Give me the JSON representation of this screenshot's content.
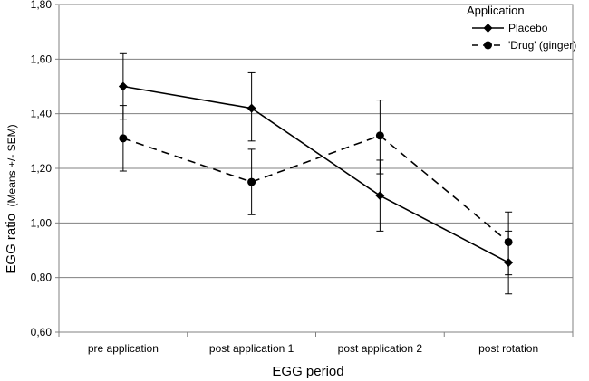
{
  "chart_data": {
    "type": "line",
    "xlabel": "EGG period",
    "ylabel_main": "EGG ratio",
    "ylabel_sub": "(Means +/- SEM)",
    "categories": [
      "pre application",
      "post application 1",
      "post application 2",
      "post rotation"
    ],
    "ylim": [
      0.6,
      1.8
    ],
    "yticks": [
      "0,60",
      "0,80",
      "1,00",
      "1,20",
      "1,40",
      "1,60",
      "1,80"
    ],
    "ytick_values": [
      0.6,
      0.8,
      1.0,
      1.2,
      1.4,
      1.6,
      1.8
    ],
    "grid": true,
    "legend": {
      "title": "Application",
      "placement": "top-right"
    },
    "series": [
      {
        "name": "Placebo",
        "line_style": "solid",
        "marker": "diamond",
        "color": "#000000",
        "values": [
          1.5,
          1.42,
          1.1,
          0.855
        ],
        "err_low": [
          1.38,
          1.3,
          0.97,
          0.74
        ],
        "err_high": [
          1.62,
          1.55,
          1.23,
          0.97
        ]
      },
      {
        "name": "'Drug' (ginger)",
        "line_style": "dashed",
        "marker": "circle",
        "color": "#000000",
        "values": [
          1.31,
          1.15,
          1.32,
          0.93
        ],
        "err_low": [
          1.19,
          1.03,
          1.18,
          0.81
        ],
        "err_high": [
          1.43,
          1.27,
          1.45,
          1.04
        ]
      }
    ]
  }
}
